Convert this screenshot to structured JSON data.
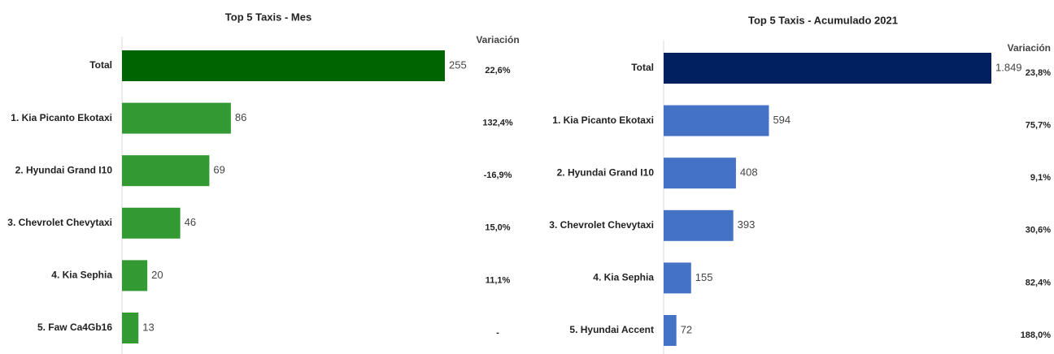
{
  "chart_data": [
    {
      "type": "bar",
      "orientation": "horizontal",
      "title": "Top 5 Taxis - Mes",
      "categories": [
        "Total",
        "1. Kia Picanto Ekotaxi",
        "2. Hyundai Grand I10",
        "3. Chevrolet Chevytaxi",
        "4. Kia Sephia",
        "5. Faw Ca4Gb16"
      ],
      "values": [
        255,
        86,
        69,
        46,
        20,
        13
      ],
      "colors": [
        "#006400",
        "#339933",
        "#339933",
        "#339933",
        "#339933",
        "#339933"
      ],
      "variation_title": "Variación",
      "variation_labels": [
        "22,6%",
        "132,4%",
        "-16,9%",
        "15,0%",
        "11,1%",
        "-"
      ]
    },
    {
      "type": "bar",
      "orientation": "horizontal",
      "title": "Top 5 Taxis - Acumulado 2021",
      "categories": [
        "Total",
        "1. Kia Picanto Ekotaxi",
        "2. Hyundai Grand I10",
        "3. Chevrolet Chevytaxi",
        "4. Kia Sephia",
        "5. Hyundai Accent"
      ],
      "values": [
        1849,
        594,
        408,
        393,
        155,
        72
      ],
      "value_labels": [
        "1.849",
        "594",
        "408",
        "393",
        "155",
        "72"
      ],
      "colors": [
        "#002060",
        "#4472c4",
        "#4472c4",
        "#4472c4",
        "#4472c4",
        "#4472c4"
      ],
      "variation_title": "Variación",
      "variation_labels": [
        "23,8%",
        "75,7%",
        "9,1%",
        "30,6%",
        "82,4%",
        "188,0%"
      ]
    }
  ]
}
